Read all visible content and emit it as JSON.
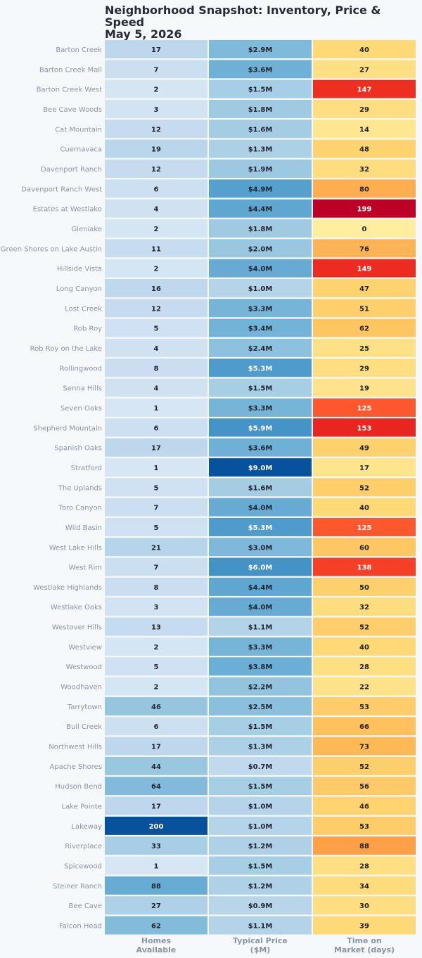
{
  "chart_data": {
    "type": "heatmap",
    "title": "Neighborhood Snapshot: Inventory, Price & Speed",
    "subtitle": "May 5, 2026",
    "columns": [
      {
        "line1": "Homes",
        "line2": "Available"
      },
      {
        "line1": "Typical Price",
        "line2": "($M)"
      },
      {
        "line1": "Time on",
        "line2": "Market (days)"
      }
    ],
    "color_scales": [
      "blues",
      "blues",
      "yellow-orange-red"
    ],
    "rows": [
      {
        "name": "Barton Creek",
        "homes": 17,
        "price": "$2.9M",
        "price_value": 2.9,
        "days": 40
      },
      {
        "name": "Barton Creek Mall",
        "homes": 7,
        "price": "$3.6M",
        "price_value": 3.6,
        "days": 27
      },
      {
        "name": "Barton Creek West",
        "homes": 2,
        "price": "$1.5M",
        "price_value": 1.5,
        "days": 147
      },
      {
        "name": "Bee Cave Woods",
        "homes": 3,
        "price": "$1.8M",
        "price_value": 1.8,
        "days": 29
      },
      {
        "name": "Cat Mountain",
        "homes": 12,
        "price": "$1.6M",
        "price_value": 1.6,
        "days": 14
      },
      {
        "name": "Cuernavaca",
        "homes": 19,
        "price": "$1.3M",
        "price_value": 1.3,
        "days": 48
      },
      {
        "name": "Davenport Ranch",
        "homes": 12,
        "price": "$1.9M",
        "price_value": 1.9,
        "days": 32
      },
      {
        "name": "Davenport Ranch West",
        "homes": 6,
        "price": "$4.9M",
        "price_value": 4.9,
        "days": 80
      },
      {
        "name": "Estates at Westlake",
        "homes": 4,
        "price": "$4.4M",
        "price_value": 4.4,
        "days": 199
      },
      {
        "name": "Gleniake",
        "homes": 2,
        "price": "$1.8M",
        "price_value": 1.8,
        "days": 0
      },
      {
        "name": "Green Shores on Lake Austin",
        "homes": 11,
        "price": "$2.0M",
        "price_value": 2.0,
        "days": 76
      },
      {
        "name": "Hillside Vista",
        "homes": 2,
        "price": "$4.0M",
        "price_value": 4.0,
        "days": 149
      },
      {
        "name": "Long Canyon",
        "homes": 16,
        "price": "$1.0M",
        "price_value": 1.0,
        "days": 47
      },
      {
        "name": "Lost Creek",
        "homes": 12,
        "price": "$3.3M",
        "price_value": 3.3,
        "days": 51
      },
      {
        "name": "Rob Roy",
        "homes": 5,
        "price": "$3.4M",
        "price_value": 3.4,
        "days": 62
      },
      {
        "name": "Rob Roy on the Lake",
        "homes": 4,
        "price": "$2.4M",
        "price_value": 2.4,
        "days": 25
      },
      {
        "name": "Rollingwood",
        "homes": 8,
        "price": "$5.3M",
        "price_value": 5.3,
        "days": 29
      },
      {
        "name": "Senna Hills",
        "homes": 4,
        "price": "$1.5M",
        "price_value": 1.5,
        "days": 19
      },
      {
        "name": "Seven Oaks",
        "homes": 1,
        "price": "$3.3M",
        "price_value": 3.3,
        "days": 125
      },
      {
        "name": "Shepherd Mountain",
        "homes": 6,
        "price": "$5.9M",
        "price_value": 5.9,
        "days": 153
      },
      {
        "name": "Spanish Oaks",
        "homes": 17,
        "price": "$3.6M",
        "price_value": 3.6,
        "days": 49
      },
      {
        "name": "Stratford",
        "homes": 1,
        "price": "$9.0M",
        "price_value": 9.0,
        "days": 17
      },
      {
        "name": "The Uplands",
        "homes": 5,
        "price": "$1.6M",
        "price_value": 1.6,
        "days": 52
      },
      {
        "name": "Toro Canyon",
        "homes": 7,
        "price": "$4.0M",
        "price_value": 4.0,
        "days": 40
      },
      {
        "name": "Wild Basin",
        "homes": 5,
        "price": "$5.3M",
        "price_value": 5.3,
        "days": 125
      },
      {
        "name": "West Lake Hills",
        "homes": 21,
        "price": "$3.0M",
        "price_value": 3.0,
        "days": 60
      },
      {
        "name": "West Rim",
        "homes": 7,
        "price": "$6.0M",
        "price_value": 6.0,
        "days": 138
      },
      {
        "name": "Westlake Highlands",
        "homes": 8,
        "price": "$4.4M",
        "price_value": 4.4,
        "days": 50
      },
      {
        "name": "Westlake Oaks",
        "homes": 3,
        "price": "$4.0M",
        "price_value": 4.0,
        "days": 32
      },
      {
        "name": "Westover Hills",
        "homes": 13,
        "price": "$1.1M",
        "price_value": 1.1,
        "days": 52
      },
      {
        "name": "Westview",
        "homes": 2,
        "price": "$3.3M",
        "price_value": 3.3,
        "days": 40
      },
      {
        "name": "Westwood",
        "homes": 5,
        "price": "$3.8M",
        "price_value": 3.8,
        "days": 28
      },
      {
        "name": "Woodhaven",
        "homes": 2,
        "price": "$2.2M",
        "price_value": 2.2,
        "days": 22
      },
      {
        "name": "Tarrytown",
        "homes": 46,
        "price": "$2.5M",
        "price_value": 2.5,
        "days": 53
      },
      {
        "name": "Bull Creek",
        "homes": 6,
        "price": "$1.5M",
        "price_value": 1.5,
        "days": 66
      },
      {
        "name": "Northwest Hills",
        "homes": 17,
        "price": "$1.3M",
        "price_value": 1.3,
        "days": 73
      },
      {
        "name": "Apache Shores",
        "homes": 44,
        "price": "$0.7M",
        "price_value": 0.7,
        "days": 52
      },
      {
        "name": "Hudson Bend",
        "homes": 64,
        "price": "$1.5M",
        "price_value": 1.5,
        "days": 56
      },
      {
        "name": "Lake Pointe",
        "homes": 17,
        "price": "$1.0M",
        "price_value": 1.0,
        "days": 46
      },
      {
        "name": "Lakeway",
        "homes": 200,
        "price": "$1.0M",
        "price_value": 1.0,
        "days": 53
      },
      {
        "name": "Riverplace",
        "homes": 33,
        "price": "$1.2M",
        "price_value": 1.2,
        "days": 88
      },
      {
        "name": "Spicewood",
        "homes": 1,
        "price": "$1.5M",
        "price_value": 1.5,
        "days": 28
      },
      {
        "name": "Steiner Ranch",
        "homes": 88,
        "price": "$1.2M",
        "price_value": 1.2,
        "days": 34
      },
      {
        "name": "Bee Cave",
        "homes": 27,
        "price": "$0.9M",
        "price_value": 0.9,
        "days": 30
      },
      {
        "name": "Falcon Head",
        "homes": 62,
        "price": "$1.1M",
        "price_value": 1.1,
        "days": 39
      }
    ]
  }
}
